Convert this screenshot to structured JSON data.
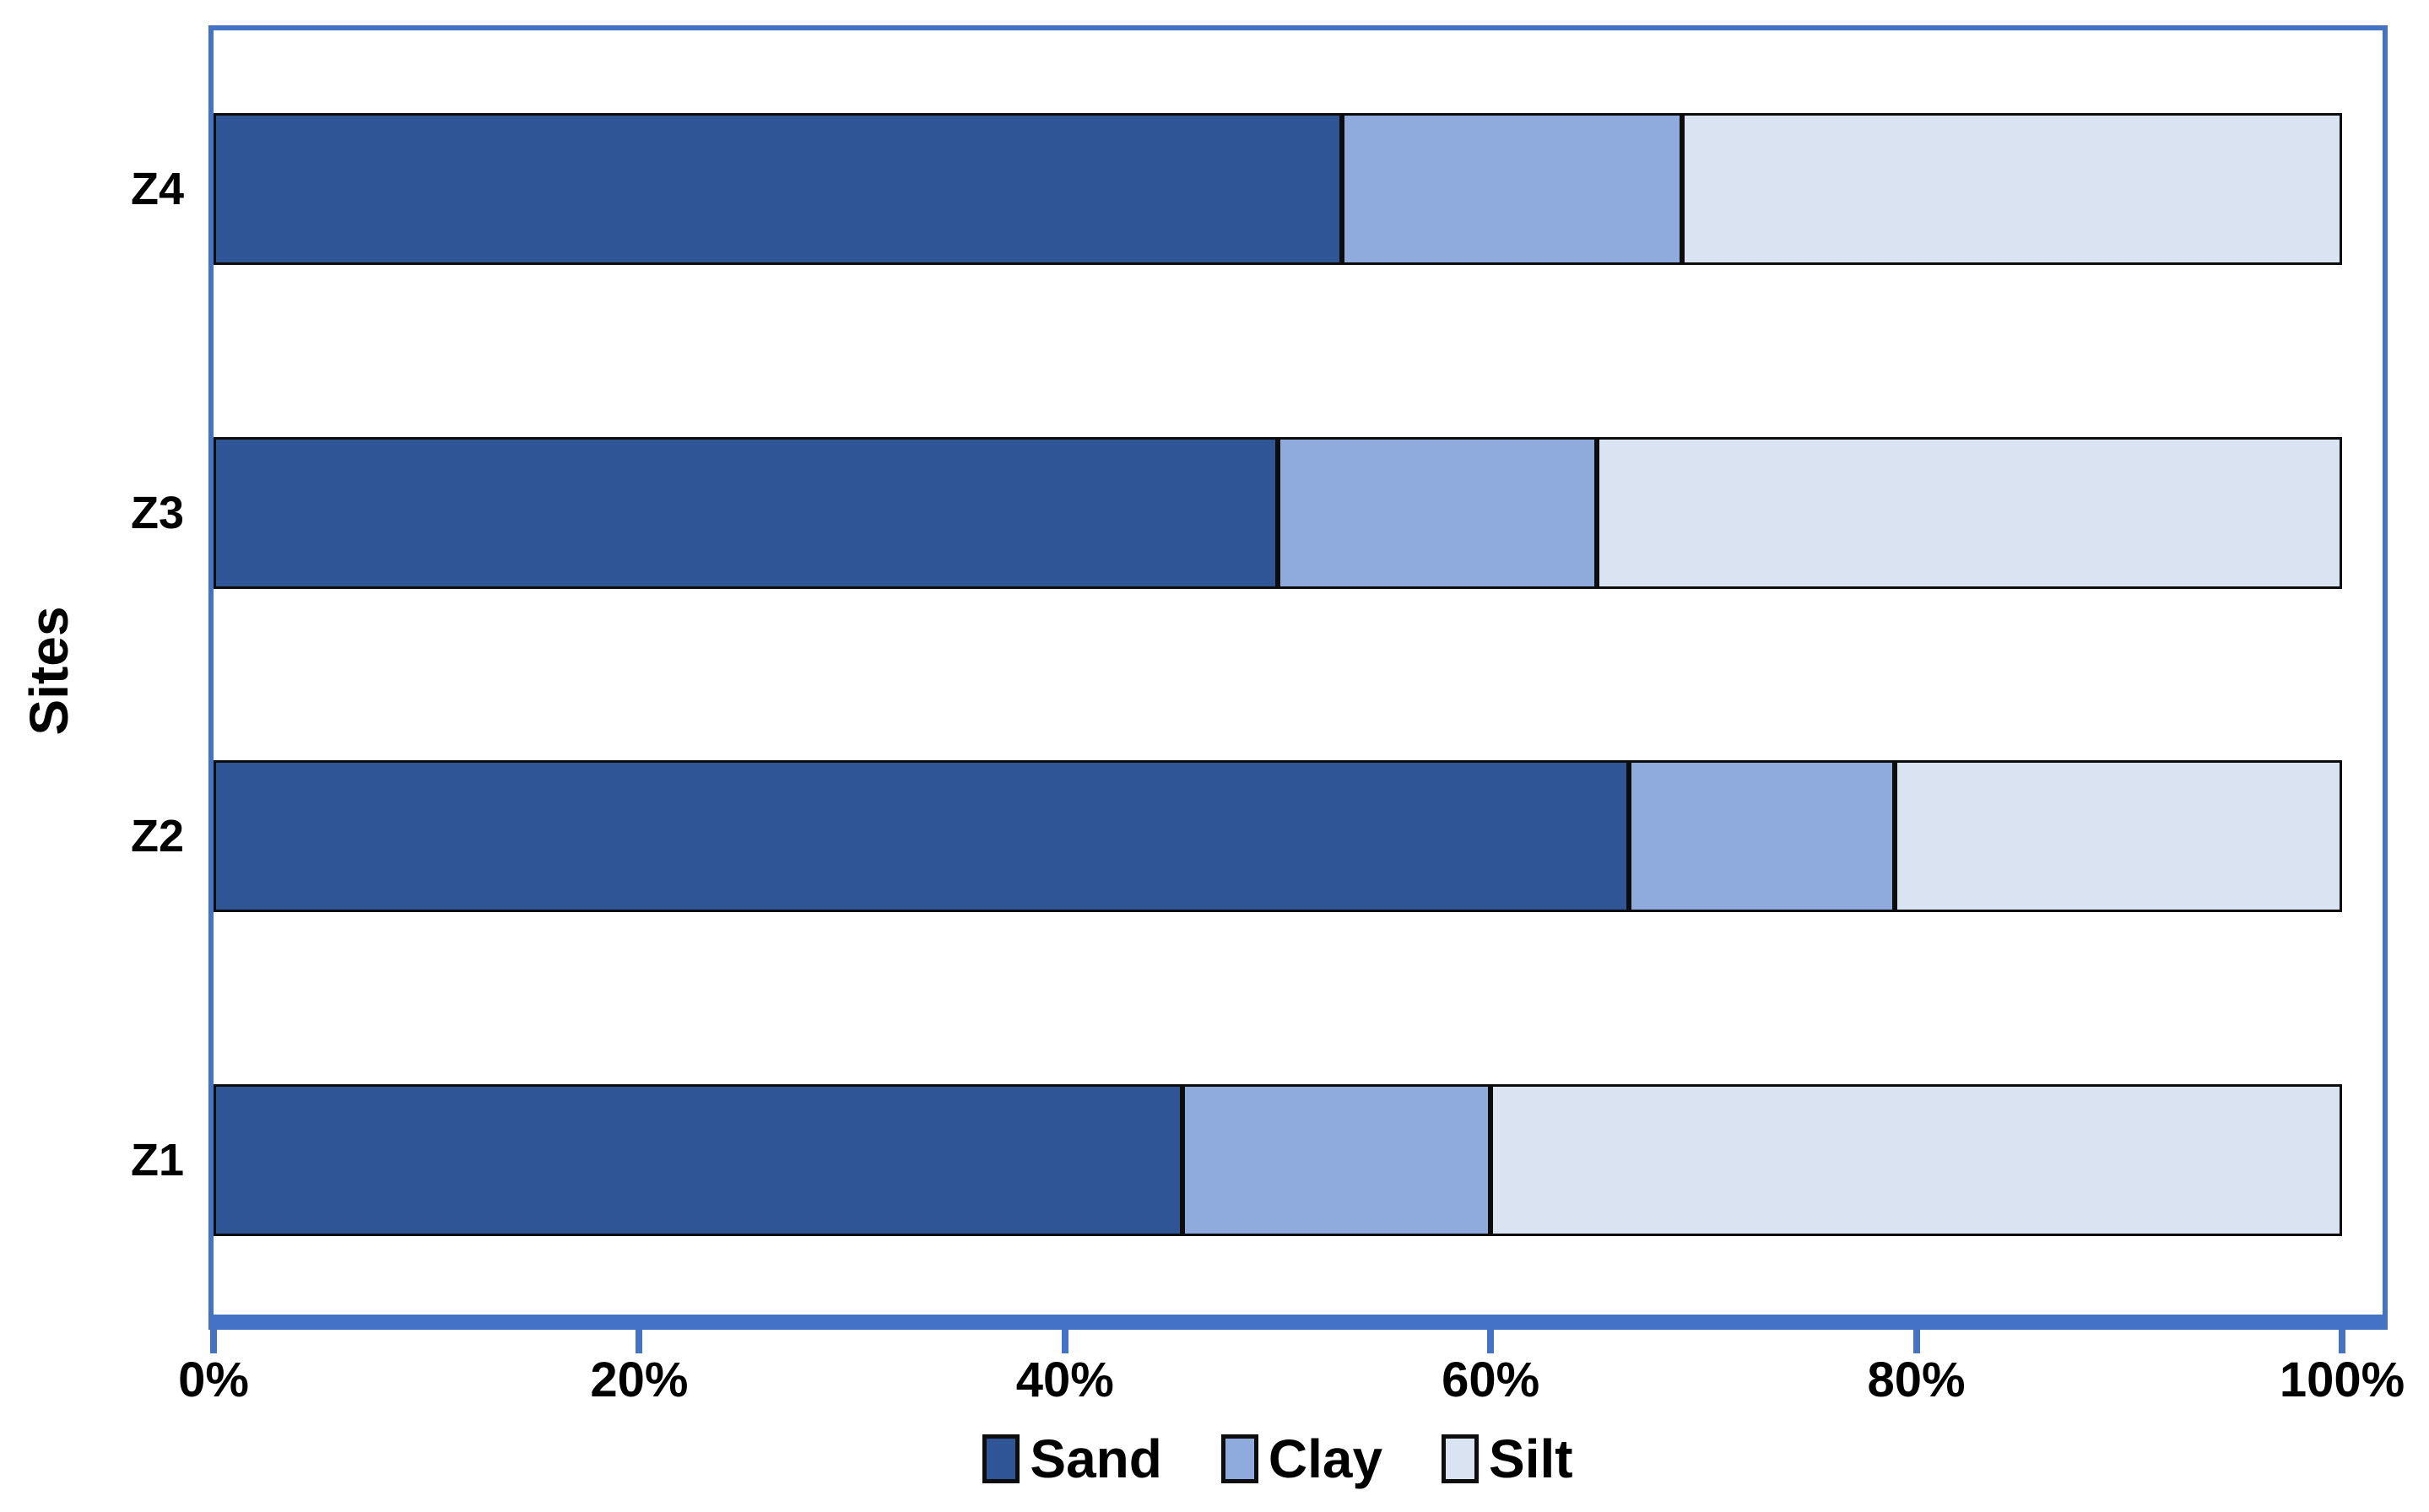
{
  "chart_data": {
    "type": "bar",
    "orientation": "horizontal",
    "stacked": true,
    "title": "",
    "xlabel": "",
    "ylabel": "Sites",
    "categories": [
      "Z1",
      "Z2",
      "Z3",
      "Z4"
    ],
    "row_order_top_to_bottom": [
      3,
      2,
      1,
      0
    ],
    "series": [
      {
        "name": "Sand",
        "color": "#2F5597",
        "values": [
          45.5,
          66.5,
          50,
          53
        ]
      },
      {
        "name": "Clay",
        "color": "#8FAADC",
        "values": [
          14.5,
          12.5,
          15,
          16
        ]
      },
      {
        "name": "Silt",
        "color": "#DAE3F2",
        "values": [
          40,
          21,
          35,
          31
        ]
      }
    ],
    "x_ticks": [
      {
        "value": 0,
        "label": "0%"
      },
      {
        "value": 20,
        "label": "20%"
      },
      {
        "value": 40,
        "label": "40%"
      },
      {
        "value": 60,
        "label": "60%"
      },
      {
        "value": 80,
        "label": "80%"
      },
      {
        "value": 100,
        "label": "100%"
      }
    ],
    "xlim": [
      0,
      100
    ],
    "grid": false,
    "legend_position": "bottom-center",
    "axis_color": "#4472C4",
    "bar_border_color": "#0d0d0d",
    "text_color": "#000000"
  }
}
